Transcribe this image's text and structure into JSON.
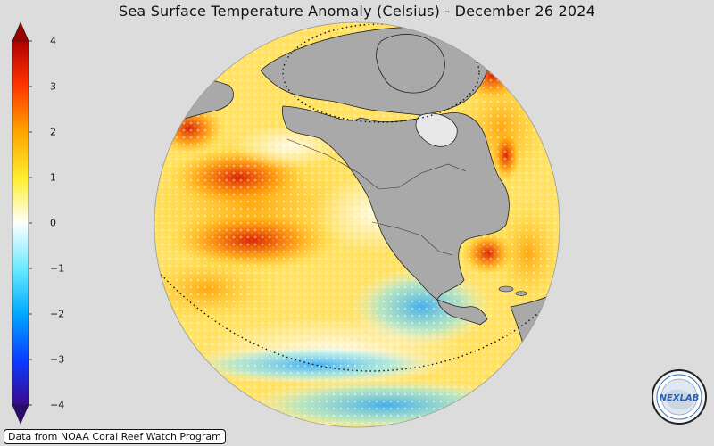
{
  "title": "Sea Surface Temperature Anomaly (Celsius) - December 26 2024",
  "colorbar": {
    "ticks": [
      "4",
      "3",
      "2",
      "1",
      "0",
      "−1",
      "−2",
      "−3",
      "−4"
    ],
    "min": -4,
    "max": 4,
    "colors": [
      "#3a0a8c",
      "#0a3aff",
      "#00a8ff",
      "#66e8ff",
      "#ffffff",
      "#ffee33",
      "#ffa500",
      "#ff3300",
      "#b00000"
    ]
  },
  "credit": "Data from NOAA Coral Reef Watch Program",
  "logo": {
    "text": "NEXLAB"
  },
  "map": {
    "land_color": "#a9a9a9",
    "background": "#dcdcdc"
  }
}
